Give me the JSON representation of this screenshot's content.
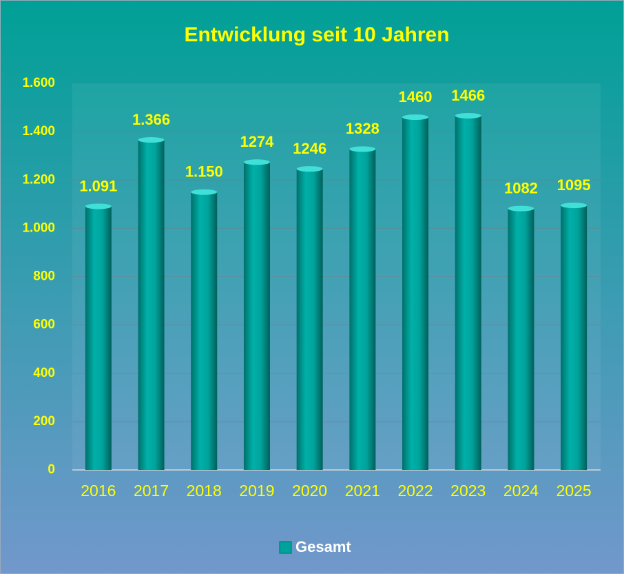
{
  "chart_data": {
    "type": "bar",
    "title": "Entwicklung seit 10 Jahren",
    "categories": [
      "2016",
      "2017",
      "2018",
      "2019",
      "2020",
      "2021",
      "2022",
      "2023",
      "2024",
      "2025"
    ],
    "series": [
      {
        "name": "Gesamt",
        "color": "#00a39c",
        "values": [
          1091,
          1366,
          1150,
          1274,
          1246,
          1328,
          1460,
          1466,
          1082,
          1095
        ],
        "value_labels": [
          "1.091",
          "1.366",
          "1.150",
          "1274",
          "1246",
          "1328",
          "1460",
          "1466",
          "1082",
          "1095"
        ]
      }
    ],
    "ylim": [
      0,
      1600
    ],
    "yticks": [
      0,
      200,
      400,
      600,
      800,
      {
        "value": 1000,
        "label": "1.000"
      },
      {
        "value": 1200,
        "label": "1.200"
      },
      {
        "value": 1400,
        "label": "1.400"
      },
      {
        "value": 1600,
        "label": "1.600"
      }
    ],
    "grid": true,
    "legend": "bottom"
  }
}
